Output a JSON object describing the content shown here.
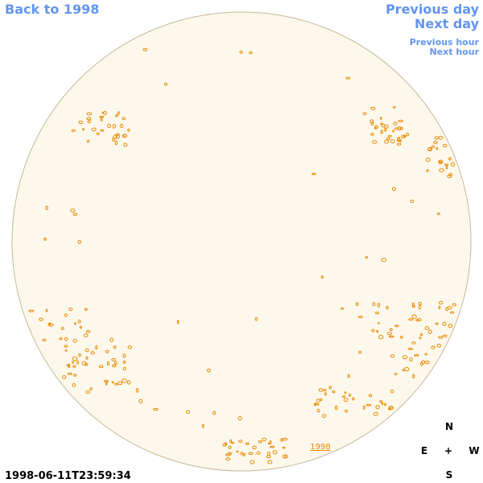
{
  "nav": {
    "back": "Back to 1998",
    "previous_day": "Previous day",
    "next_day": "Next day",
    "previous_hour": "Previous hour",
    "next_hour": "Next hour"
  },
  "image": {
    "year_link": "1998",
    "timestamp": "1998-06-11T23:59:34"
  },
  "compass": {
    "north": "N",
    "east": "E",
    "center": "+",
    "west": "W",
    "south": "S"
  }
}
